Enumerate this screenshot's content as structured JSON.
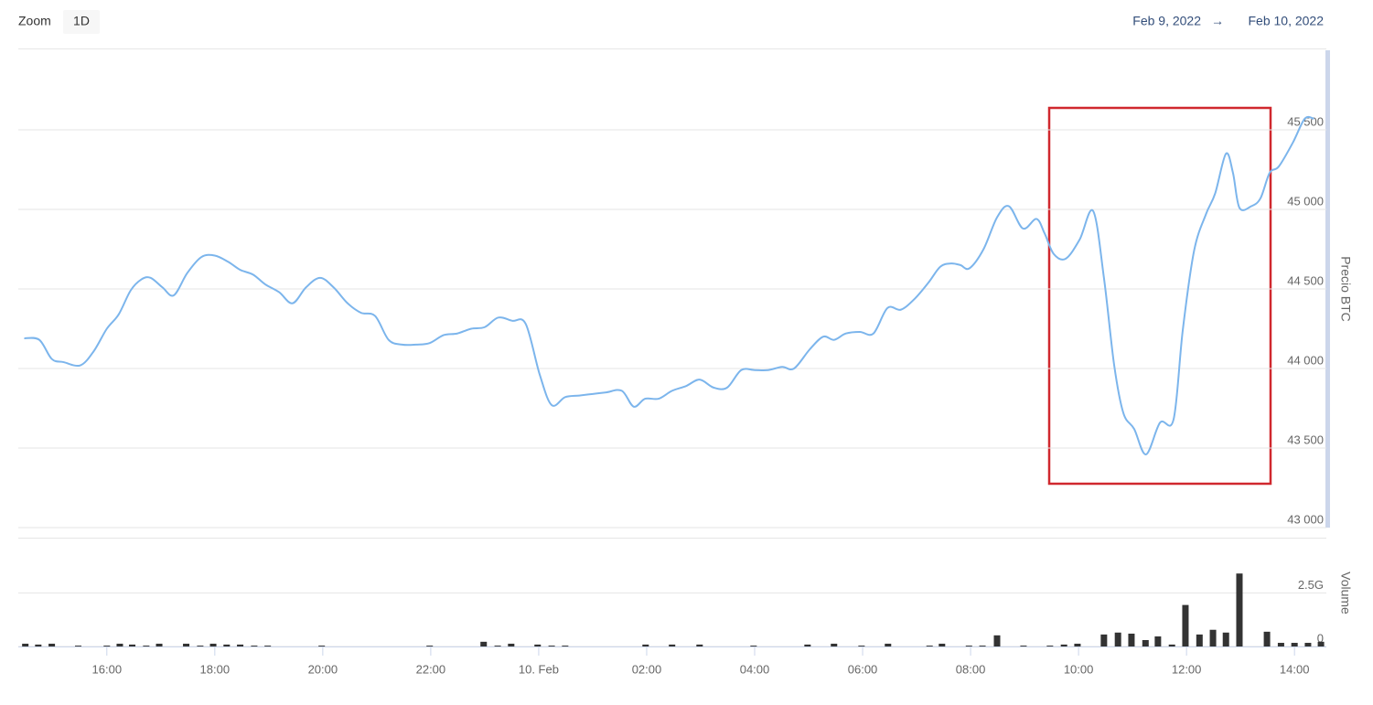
{
  "toolbar": {
    "zoom_label": "Zoom",
    "zoom_button": "1D",
    "range_from": "Feb 9, 2022",
    "range_arrow": "→",
    "range_to": "Feb 10, 2022"
  },
  "chart_data": [
    {
      "type": "line",
      "y_axis_title": "Precio BTC",
      "color": "#7cb5ec",
      "xlim": [
        14.36,
        38.59
      ],
      "ylim": [
        43000,
        46000
      ],
      "yticks": [
        {
          "value": 43000,
          "label": "43 000"
        },
        {
          "value": 43500,
          "label": "43 500"
        },
        {
          "value": 44000,
          "label": "44 000"
        },
        {
          "value": 44500,
          "label": "44 500"
        },
        {
          "value": 45000,
          "label": "45 000"
        },
        {
          "value": 45500,
          "label": "45 500"
        }
      ],
      "x": [
        14.47,
        14.75,
        14.98,
        15.2,
        15.51,
        15.76,
        16.0,
        16.22,
        16.44,
        16.64,
        16.81,
        17.03,
        17.24,
        17.49,
        17.75,
        18.0,
        18.25,
        18.47,
        18.71,
        18.93,
        19.19,
        19.44,
        19.69,
        19.95,
        20.2,
        20.46,
        20.71,
        20.97,
        21.22,
        21.47,
        21.73,
        21.98,
        22.24,
        22.49,
        22.75,
        23.0,
        23.25,
        23.51,
        23.76,
        24.02,
        24.24,
        24.49,
        24.75,
        25.0,
        25.25,
        25.54,
        25.76,
        25.97,
        26.22,
        26.47,
        26.73,
        26.98,
        27.24,
        27.49,
        27.75,
        28.0,
        28.25,
        28.51,
        28.73,
        29.02,
        29.27,
        29.47,
        29.69,
        29.95,
        30.2,
        30.46,
        30.71,
        30.97,
        31.22,
        31.44,
        31.64,
        31.81,
        31.98,
        32.24,
        32.49,
        32.71,
        32.97,
        33.22,
        33.37,
        33.54,
        33.76,
        34.02,
        34.27,
        34.47,
        34.66,
        34.83,
        35.03,
        35.25,
        35.51,
        35.76,
        35.93,
        36.14,
        36.36,
        36.53,
        36.73,
        36.86,
        36.98,
        37.2,
        37.37,
        37.54,
        37.71,
        37.97,
        38.19,
        38.36
      ],
      "values": [
        44190,
        44180,
        44060,
        44040,
        44020,
        44110,
        44250,
        44340,
        44490,
        44560,
        44570,
        44510,
        44460,
        44600,
        44700,
        44710,
        44670,
        44620,
        44590,
        44530,
        44480,
        44410,
        44510,
        44570,
        44510,
        44410,
        44350,
        44330,
        44180,
        44150,
        44150,
        44160,
        44210,
        44220,
        44250,
        44260,
        44320,
        44300,
        44280,
        43960,
        43770,
        43820,
        43830,
        43840,
        43850,
        43860,
        43760,
        43810,
        43810,
        43860,
        43890,
        43930,
        43880,
        43880,
        43990,
        43990,
        43990,
        44010,
        44000,
        44120,
        44200,
        44180,
        44220,
        44230,
        44220,
        44380,
        44370,
        44440,
        44540,
        44640,
        44660,
        44650,
        44630,
        44750,
        44950,
        45020,
        44880,
        44940,
        44850,
        44720,
        44690,
        44810,
        44990,
        44570,
        44020,
        43720,
        43620,
        43460,
        43660,
        43680,
        44240,
        44740,
        44970,
        45100,
        45350,
        45230,
        45010,
        45020,
        45070,
        45230,
        45270,
        45420,
        45570,
        45570
      ]
    },
    {
      "type": "bar",
      "y_axis_title": "Volume",
      "color": "#333333",
      "xlim": [
        14.36,
        38.59
      ],
      "ylim": [
        0,
        5
      ],
      "yticks": [
        0,
        {
          "value": 2.5,
          "label": "2.5G"
        }
      ],
      "xticks": [
        {
          "value": 16,
          "label": "16:00"
        },
        {
          "value": 18,
          "label": "18:00"
        },
        {
          "value": 20,
          "label": "20:00"
        },
        {
          "value": 22,
          "label": "22:00"
        },
        {
          "value": 24,
          "label": "10. Feb"
        },
        {
          "value": 26,
          "label": "02:00"
        },
        {
          "value": 28,
          "label": "04:00"
        },
        {
          "value": 30,
          "label": "06:00"
        },
        {
          "value": 32,
          "label": "08:00"
        },
        {
          "value": 34,
          "label": "10:00"
        },
        {
          "value": 36,
          "label": "12:00"
        },
        {
          "value": 38,
          "label": "14:00"
        }
      ],
      "x": [
        14.49,
        14.73,
        14.98,
        15.47,
        16.0,
        16.24,
        16.47,
        16.73,
        16.97,
        17.47,
        17.73,
        17.97,
        18.22,
        18.47,
        18.73,
        18.98,
        19.98,
        21.98,
        22.98,
        23.24,
        23.49,
        23.98,
        24.24,
        24.49,
        25.98,
        26.47,
        26.98,
        27.98,
        28.98,
        29.47,
        29.98,
        30.47,
        31.24,
        31.47,
        31.97,
        32.22,
        32.49,
        32.98,
        33.47,
        33.73,
        33.98,
        34.47,
        34.73,
        34.98,
        35.24,
        35.47,
        35.73,
        35.98,
        36.24,
        36.49,
        36.73,
        36.98,
        37.49,
        37.75,
        38.0,
        38.25,
        38.49
      ],
      "values": [
        0.13,
        0.09,
        0.13,
        0.04,
        0.04,
        0.13,
        0.09,
        0.04,
        0.13,
        0.13,
        0.04,
        0.13,
        0.09,
        0.09,
        0.04,
        0.04,
        0.04,
        0.04,
        0.22,
        0.04,
        0.13,
        0.09,
        0.04,
        0.04,
        0.09,
        0.09,
        0.09,
        0.04,
        0.09,
        0.13,
        0.04,
        0.13,
        0.04,
        0.13,
        0.04,
        0.04,
        0.52,
        0.04,
        0.04,
        0.09,
        0.13,
        0.56,
        0.65,
        0.6,
        0.3,
        0.47,
        0.09,
        1.94,
        0.56,
        0.78,
        0.65,
        3.41,
        0.69,
        0.17,
        0.17,
        0.17,
        0.22
      ]
    }
  ]
}
